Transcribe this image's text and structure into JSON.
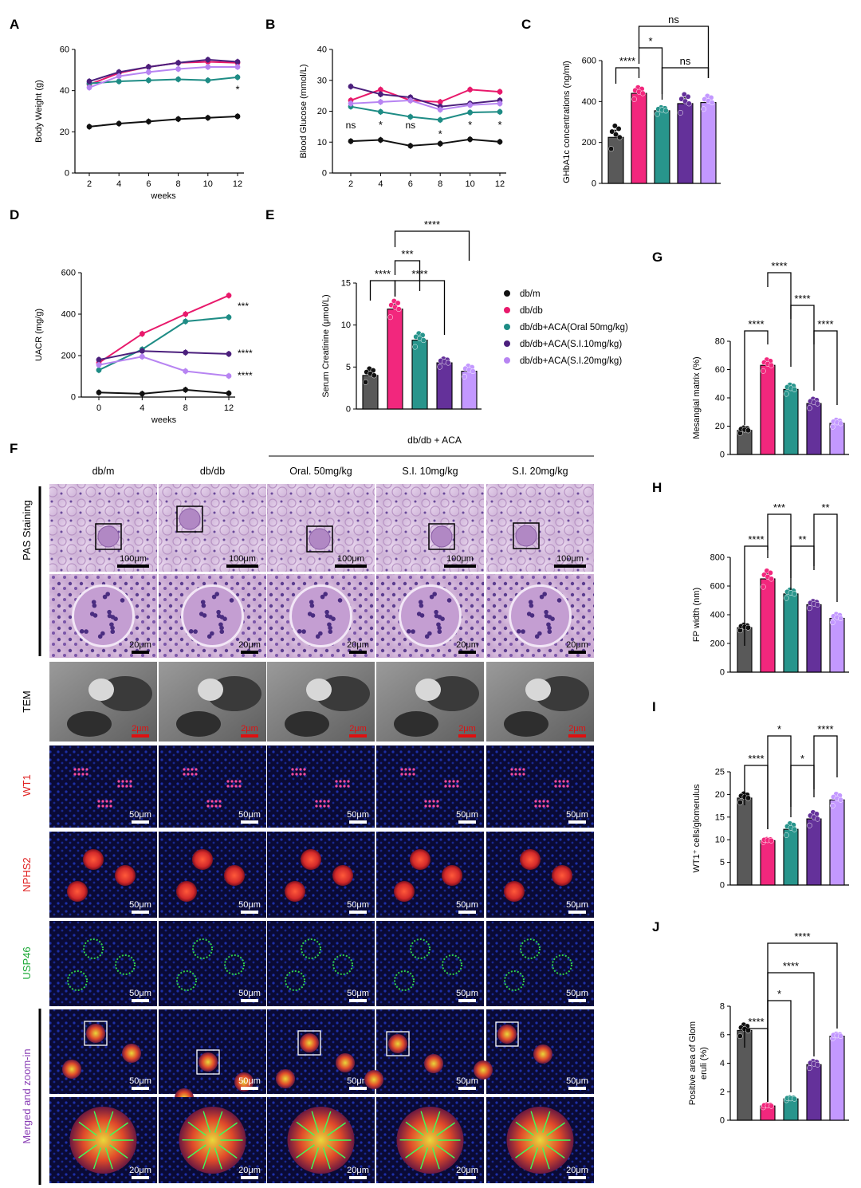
{
  "colors": {
    "dbm": "#111111",
    "dbdb": "#e8196b",
    "oral50": "#1e8c85",
    "si10": "#4b1f7c",
    "si20": "#b784f2",
    "dbm_bar": "#595959",
    "dbdb_bar": "#f2277d",
    "oral50_bar": "#28958c",
    "si10_bar": "#64319a",
    "si20_bar": "#c398ff",
    "scalebar_red": "#e01010",
    "wt1_label": "#e02020",
    "nphs2_label": "#e02020",
    "usp46_label": "#1faa3a",
    "merged_label": "#8a3fb5"
  },
  "legend": [
    "db/m",
    "db/db",
    "db/db+ACA(Oral 50mg/kg)",
    "db/db+ACA(S.I.10mg/kg)",
    "db/db+ACA(S.I.20mg/kg)"
  ],
  "panelF": {
    "letter": "F",
    "group_header": "db/db + ACA",
    "columns": [
      "db/m",
      "db/db",
      "Oral. 50mg/kg",
      "S.I. 10mg/kg",
      "S.I. 20mg/kg"
    ],
    "row_labels": {
      "pas": "PAS Staining",
      "tem": "TEM",
      "wt1": "WT1",
      "nphs2": "NPHS2",
      "usp46": "USP46",
      "merged": "Merged and zoom-in"
    },
    "scalebars": {
      "pas_low": "100μm",
      "pas_high": "20μm",
      "tem": "2μm",
      "if": "50μm",
      "zoom": "20μm"
    },
    "images": [
      "PAS staining low magnification",
      "PAS staining high magnification",
      "TEM",
      "WT1 immunofluorescence",
      "NPHS2 immunofluorescence",
      "USP46 immunofluorescence",
      "Merged",
      "Zoom-in"
    ]
  },
  "chart_data": [
    {
      "panel": "A",
      "type": "line",
      "xlabel": "weeks",
      "ylabel": "Body Weight (g)",
      "x": [
        2,
        4,
        6,
        8,
        10,
        12
      ],
      "xticks": [
        "2",
        "4",
        "6",
        "8",
        "10",
        "12"
      ],
      "ylim": [
        0,
        60
      ],
      "yticks": [
        "0",
        "20",
        "40",
        "60"
      ],
      "series": [
        {
          "name": "db/m",
          "values": [
            22.5,
            24,
            25,
            26.2,
            26.8,
            27.5
          ]
        },
        {
          "name": "db/db",
          "values": [
            43,
            48.5,
            51.5,
            53.5,
            54,
            53.5
          ]
        },
        {
          "name": "db/db+ACA(Oral 50mg/kg)",
          "values": [
            43.5,
            44.5,
            45,
            45.5,
            45,
            46.5
          ]
        },
        {
          "name": "db/db+ACA(S.I.10mg/kg)",
          "values": [
            44.5,
            49,
            51.5,
            53.5,
            55,
            54
          ]
        },
        {
          "name": "db/db+ACA(S.I.20mg/kg)",
          "values": [
            41.5,
            47,
            49,
            50.5,
            51.5,
            51.5
          ]
        }
      ],
      "annotations": [
        {
          "x": 12,
          "text": "*"
        }
      ]
    },
    {
      "panel": "B",
      "type": "line",
      "xlabel": "",
      "ylabel": "Blood Glucose (mmol/L)",
      "x": [
        2,
        4,
        6,
        8,
        10,
        12
      ],
      "xticks": [
        "2",
        "4",
        "6",
        "8",
        "10",
        "12"
      ],
      "ylim": [
        0,
        40
      ],
      "yticks": [
        "0",
        "10",
        "20",
        "30",
        "40"
      ],
      "series": [
        {
          "name": "db/m",
          "values": [
            10.3,
            10.7,
            8.8,
            9.5,
            10.9,
            10.1
          ]
        },
        {
          "name": "db/db",
          "values": [
            23.5,
            27,
            23.5,
            23,
            27,
            26.3
          ]
        },
        {
          "name": "db/db+ACA(Oral 50mg/kg)",
          "values": [
            21.5,
            19.8,
            18.2,
            17.2,
            19.6,
            19.8
          ]
        },
        {
          "name": "db/db+ACA(S.I.10mg/kg)",
          "values": [
            28,
            25.5,
            24.5,
            21.5,
            22.5,
            23.5
          ]
        },
        {
          "name": "db/db+ACA(S.I.20mg/kg)",
          "values": [
            22.5,
            23,
            23.5,
            20.5,
            22,
            22.5
          ]
        }
      ],
      "annotations": [
        {
          "x": 2,
          "text": "ns"
        },
        {
          "x": 4,
          "text": "*"
        },
        {
          "x": 6,
          "text": "ns"
        },
        {
          "x": 8,
          "text": "*"
        },
        {
          "x": 10,
          "text": "*"
        },
        {
          "x": 12,
          "text": "*"
        }
      ]
    },
    {
      "panel": "C",
      "type": "bar",
      "ylabel": "GHbA1c concentrations (ng/ml)",
      "categories": [
        "db/m",
        "db/db",
        "db/db+ACA(Oral 50mg/kg)",
        "db/db+ACA(S.I.10mg/kg)",
        "db/db+ACA(S.I.20mg/kg)"
      ],
      "values": [
        225,
        440,
        355,
        390,
        395
      ],
      "errors": [
        35,
        18,
        10,
        28,
        20
      ],
      "ylim": [
        0,
        600
      ],
      "yticks": [
        "0",
        "200",
        "400",
        "600"
      ],
      "comparisons": [
        {
          "from": 0,
          "to": 1,
          "text": "****"
        },
        {
          "from": 1,
          "to": 2,
          "text": "*"
        },
        {
          "from": 2,
          "to": 4,
          "text": "ns"
        },
        {
          "from": 1,
          "to": 4,
          "text": "ns"
        }
      ]
    },
    {
      "panel": "D",
      "type": "line",
      "xlabel": "weeks",
      "ylabel": "UACR (mg/g)",
      "x": [
        0,
        4,
        8,
        12
      ],
      "xticks": [
        "0",
        "4",
        "8",
        "12"
      ],
      "ylim": [
        0,
        600
      ],
      "yticks": [
        "0",
        "200",
        "400",
        "600"
      ],
      "series": [
        {
          "name": "db/m",
          "values": [
            22,
            16,
            35,
            18
          ]
        },
        {
          "name": "db/db",
          "values": [
            165,
            305,
            400,
            490
          ]
        },
        {
          "name": "db/db+ACA(Oral 50mg/kg)",
          "values": [
            130,
            230,
            365,
            385
          ]
        },
        {
          "name": "db/db+ACA(S.I.10mg/kg)",
          "values": [
            180,
            222,
            215,
            208
          ]
        },
        {
          "name": "db/db+ACA(S.I.20mg/kg)",
          "values": [
            155,
            195,
            125,
            102
          ]
        }
      ],
      "annotations": [
        {
          "text": "***"
        },
        {
          "text": "****"
        },
        {
          "text": "****"
        }
      ]
    },
    {
      "panel": "E",
      "type": "bar",
      "ylabel": "Serum Creatinine (μmol/L)",
      "categories": [
        "db/m",
        "db/db",
        "db/db+ACA(Oral 50mg/kg)",
        "db/db+ACA(S.I.10mg/kg)",
        "db/db+ACA(S.I.20mg/kg)"
      ],
      "values": [
        4.0,
        11.9,
        8.2,
        5.5,
        4.5
      ],
      "errors": [
        0.5,
        0.6,
        0.5,
        0.3,
        0.4
      ],
      "ylim": [
        0,
        15
      ],
      "yticks": [
        "0",
        "5",
        "10",
        "15"
      ],
      "comparisons": [
        {
          "from": 0,
          "to": 1,
          "text": "****"
        },
        {
          "from": 1,
          "to": 3,
          "text": "****"
        },
        {
          "from": 1,
          "to": 2,
          "text": "***"
        },
        {
          "from": 1,
          "to": 4,
          "text": "****"
        }
      ]
    },
    {
      "panel": "G",
      "type": "bar",
      "ylabel": "Mesangial matrix (%)",
      "categories": [
        "db/m",
        "db/db",
        "db/db+ACA(Oral 50mg/kg)",
        "db/db+ACA(S.I.10mg/kg)",
        "db/db+ACA(S.I.20mg/kg)"
      ],
      "values": [
        17,
        63,
        46,
        36,
        22
      ],
      "errors": [
        1.2,
        2.5,
        2.0,
        2.0,
        1.5
      ],
      "ylim": [
        0,
        80
      ],
      "yticks": [
        "0",
        "20",
        "40",
        "60",
        "80"
      ],
      "comparisons": [
        {
          "from": 0,
          "to": 1,
          "text": "****"
        },
        {
          "from": 1,
          "to": 2,
          "text": "****"
        },
        {
          "from": 2,
          "to": 3,
          "text": "****"
        },
        {
          "from": 3,
          "to": 4,
          "text": "****"
        }
      ]
    },
    {
      "panel": "H",
      "type": "bar",
      "ylabel": "FP width (nm)",
      "categories": [
        "db/m",
        "db/db",
        "db/db+ACA(Oral 50mg/kg)",
        "db/db+ACA(S.I.10mg/kg)",
        "db/db+ACA(S.I.20mg/kg)"
      ],
      "values": [
        310,
        650,
        545,
        470,
        375
      ],
      "errors": [
        12,
        35,
        18,
        15,
        18
      ],
      "ylim": [
        0,
        800
      ],
      "yticks": [
        "0",
        "200",
        "400",
        "600",
        "800"
      ],
      "comparisons": [
        {
          "from": 0,
          "to": 1,
          "text": "****"
        },
        {
          "from": 1,
          "to": 2,
          "text": "***"
        },
        {
          "from": 2,
          "to": 3,
          "text": "**"
        },
        {
          "from": 3,
          "to": 4,
          "text": "**"
        }
      ]
    },
    {
      "panel": "I",
      "type": "bar",
      "ylabel": "WT1⁺ cells/glomerulus",
      "categories": [
        "db/m",
        "db/db",
        "db/db+ACA(Oral 50mg/kg)",
        "db/db+ACA(S.I.10mg/kg)",
        "db/db+ACA(S.I.20mg/kg)"
      ],
      "values": [
        19.2,
        9.8,
        12.3,
        14.6,
        18.8
      ],
      "errors": [
        0.6,
        0.2,
        0.8,
        0.9,
        0.8
      ],
      "ylim": [
        0,
        25
      ],
      "yticks": [
        "0",
        "5",
        "10",
        "15",
        "20",
        "25"
      ],
      "comparisons": [
        {
          "from": 0,
          "to": 1,
          "text": "****"
        },
        {
          "from": 1,
          "to": 2,
          "text": "*"
        },
        {
          "from": 2,
          "to": 3,
          "text": "*"
        },
        {
          "from": 3,
          "to": 4,
          "text": "****"
        }
      ]
    },
    {
      "panel": "J",
      "type": "bar",
      "ylabel": "Positive area of Glomeruli (%)",
      "categories": [
        "db/m",
        "db/db",
        "db/db+ACA(Oral 50mg/kg)",
        "db/db+ACA(S.I.10mg/kg)",
        "db/db+ACA(S.I.20mg/kg)"
      ],
      "values": [
        6.3,
        1.0,
        1.5,
        3.9,
        5.9
      ],
      "errors": [
        0.25,
        0.06,
        0.06,
        0.15,
        0.1
      ],
      "ylim": [
        0,
        8
      ],
      "yticks": [
        "0",
        "2",
        "4",
        "6",
        "8"
      ],
      "comparisons": [
        {
          "from": 0,
          "to": 1,
          "text": "****"
        },
        {
          "from": 1,
          "to": 2,
          "text": "*"
        },
        {
          "from": 1,
          "to": 3,
          "text": "****"
        },
        {
          "from": 1,
          "to": 4,
          "text": "****"
        }
      ]
    }
  ]
}
